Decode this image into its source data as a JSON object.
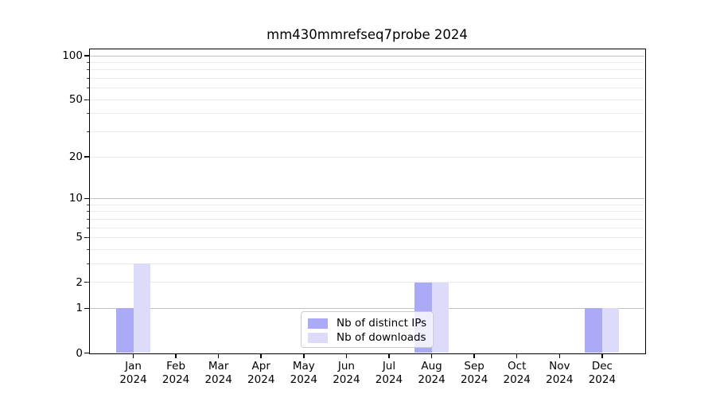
{
  "title": "mm430mmrefseq7probe 2024",
  "chart_data": {
    "type": "bar",
    "title": "mm430mmrefseq7probe 2024",
    "categories": [
      "Jan",
      "Feb",
      "Mar",
      "Apr",
      "May",
      "Jun",
      "Jul",
      "Aug",
      "Sep",
      "Oct",
      "Nov",
      "Dec"
    ],
    "category_year": "2024",
    "series": [
      {
        "name": "Nb of distinct IPs",
        "color": "#aaaaf7",
        "values": [
          1,
          0,
          0,
          0,
          0,
          0,
          0,
          2,
          0,
          0,
          0,
          1
        ]
      },
      {
        "name": "Nb of downloads",
        "color": "#dcdcfa",
        "values": [
          3,
          0,
          0,
          0,
          0,
          0,
          0,
          2,
          0,
          0,
          0,
          1
        ]
      }
    ],
    "xlabel": "",
    "ylabel": "",
    "yscale": "log1p",
    "ylim": [
      0,
      110
    ],
    "yticks_major": [
      0,
      1,
      2,
      5,
      10,
      20,
      50,
      100
    ],
    "gridlines_major": [
      1,
      10,
      100
    ],
    "gridlines_minor": [
      2,
      3,
      4,
      5,
      6,
      7,
      8,
      9,
      20,
      30,
      40,
      50,
      60,
      70,
      80,
      90
    ],
    "grid": true,
    "legend_position": "lower center",
    "colors": {
      "major_gridline": "#c2c2c2",
      "minor_gridline": "#ebebeb",
      "axis": "#000000",
      "legend_border": "#cccccc"
    }
  }
}
